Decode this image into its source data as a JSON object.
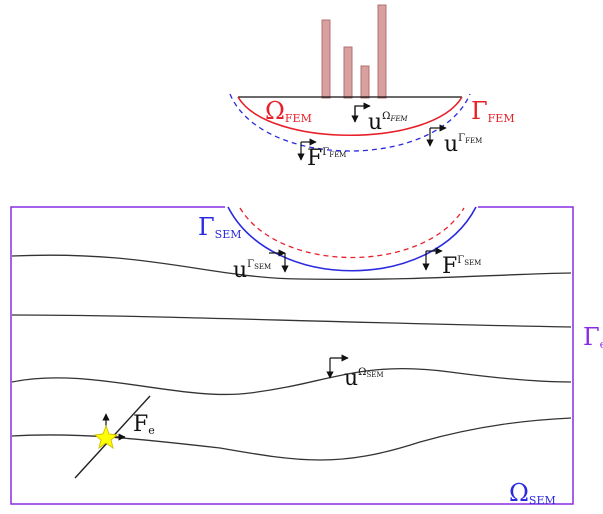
{
  "figure": {
    "omega": "Ω",
    "gamma": "Γ",
    "u": "u",
    "F": "F",
    "fem": "FEM",
    "sem": "SEM",
    "e": "e"
  },
  "colors": {
    "fem": "#e8202a",
    "sem_interface": "#2a2adf",
    "domain_box": "#8a2be2",
    "source": "#ffff00",
    "building": "#d9a0a0",
    "layer": "#333333"
  },
  "icons": {
    "source_star": "star-icon",
    "displacement_axes": "axis-arrows-icon"
  }
}
